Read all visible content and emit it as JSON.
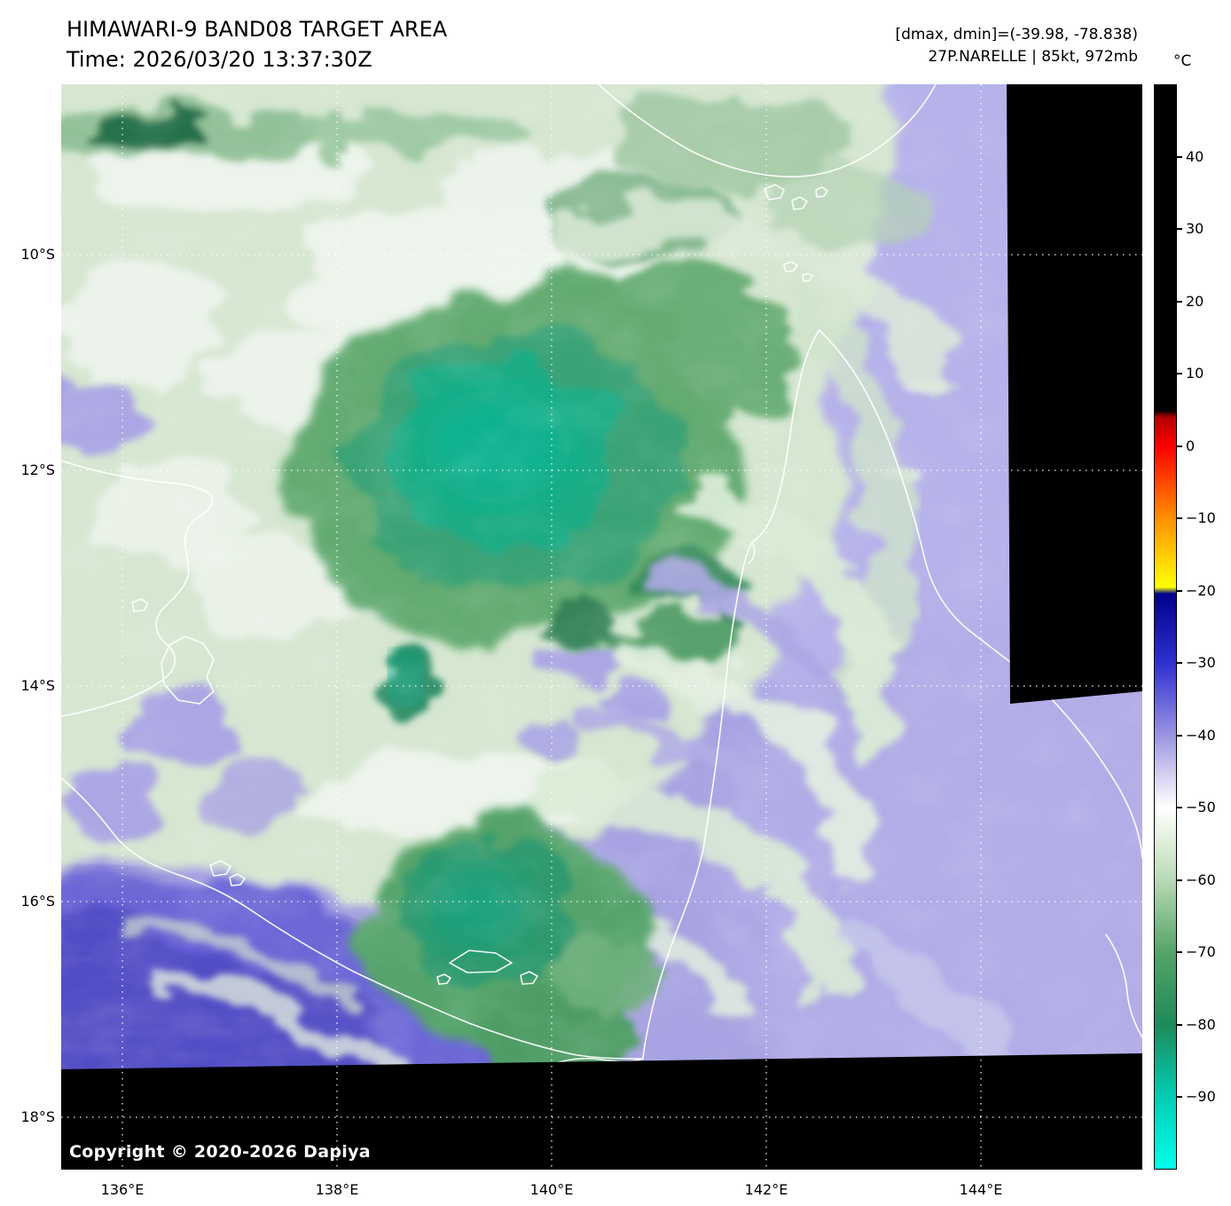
{
  "header": {
    "title": "HIMAWARI-9 BAND08 TARGET AREA",
    "time": "Time: 2026/03/20 13:37:30Z",
    "dmax_dmin": "[dmax, dmin]=(-39.98, -78.838)",
    "storm": "27P.NARELLE | 85kt, 972mb"
  },
  "map": {
    "lat_labels": [
      "10°S",
      "12°S",
      "14°S",
      "16°S",
      "18°S"
    ],
    "lon_labels": [
      "136°E",
      "138°E",
      "140°E",
      "142°E",
      "144°E"
    ],
    "copyright": "Copyright © 2020-2026 Dapiya"
  },
  "colorbar": {
    "unit": "°C",
    "domain": [
      50,
      -100
    ],
    "tick_values": [
      40,
      30,
      20,
      10,
      0,
      -10,
      -20,
      -30,
      -40,
      -50,
      -60,
      -70,
      -80,
      -90
    ],
    "stops": [
      {
        "t": 50,
        "c": "#000000"
      },
      {
        "t": 5,
        "c": "#000000"
      },
      {
        "t": 4,
        "c": "#b40000"
      },
      {
        "t": 0,
        "c": "#ff0000"
      },
      {
        "t": -10,
        "c": "#ff9000"
      },
      {
        "t": -19.5,
        "c": "#ffff00"
      },
      {
        "t": -20.4,
        "c": "#00008b"
      },
      {
        "t": -30,
        "c": "#3030d0"
      },
      {
        "t": -40,
        "c": "#9a94e2"
      },
      {
        "t": -46,
        "c": "#d9d6f2"
      },
      {
        "t": -50,
        "c": "#ffffff"
      },
      {
        "t": -55,
        "c": "#ddeed8"
      },
      {
        "t": -60,
        "c": "#b9d9b6"
      },
      {
        "t": -70,
        "c": "#55a468"
      },
      {
        "t": -80,
        "c": "#1f8a5a"
      },
      {
        "t": -90,
        "c": "#00cdb4"
      },
      {
        "t": -100,
        "c": "#00ffec"
      }
    ]
  }
}
